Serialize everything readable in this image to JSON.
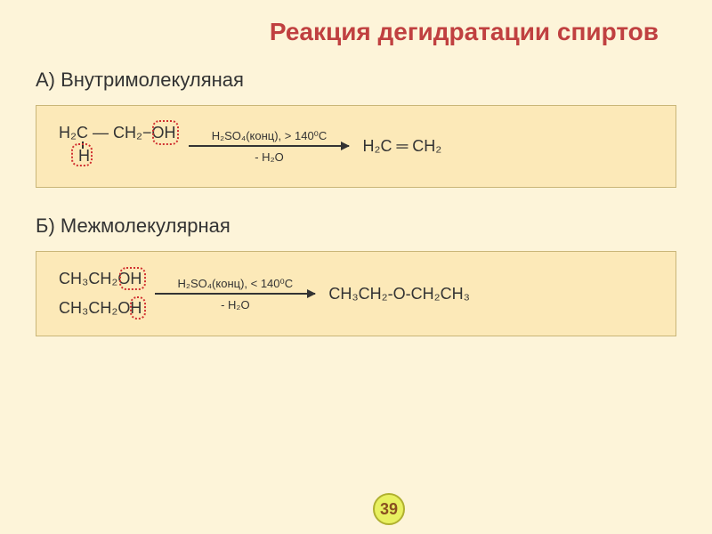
{
  "colors": {
    "slide_bg": "#fdf4d9",
    "title_color": "#c04040",
    "subtitle_color": "#333333",
    "box_bg": "#fce9b8",
    "box_border": "#c9b678",
    "text_color": "#333333",
    "arrow_color": "#333333",
    "dotted_color": "#d03030",
    "pagenum_bg": "#e8f060",
    "pagenum_border": "#b0b030",
    "pagenum_text": "#8a5020"
  },
  "title": "Реакция дегидратации спиртов",
  "section_a": {
    "label": "А) Внутримолекуляная",
    "reactant_main": "H₂C — CH₂−OH",
    "reactant_h": "H",
    "conditions_top": "H₂SO₄(конц), > 140⁰C",
    "conditions_bottom": "- H₂O",
    "product": "H₂C ═ CH₂"
  },
  "section_b": {
    "label": "Б) Межмолекулярная",
    "reactant_line1": "CH₃CH₂OH",
    "reactant_line2": "CH₃CH₂OH",
    "conditions_top": "H₂SO₄(конц), < 140⁰C",
    "conditions_bottom": "- H₂O",
    "product": "CH₃CH₂-O-CH₂CH₃"
  },
  "page_number": "39"
}
